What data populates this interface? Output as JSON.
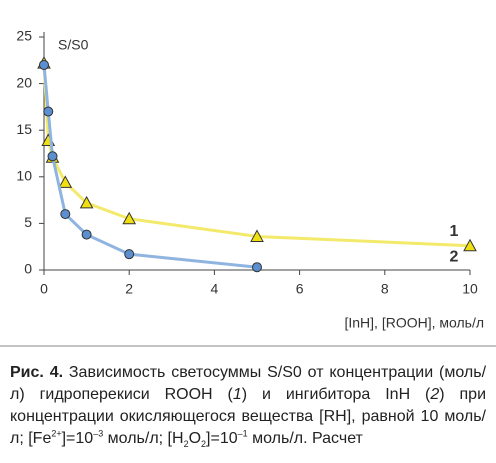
{
  "chart_data": {
    "type": "line",
    "ylabel": "S/S0",
    "xlabel": "[InH], [ROOH], моль/л",
    "xlim": [
      0,
      10
    ],
    "xticks": [
      0,
      2,
      4,
      6,
      8,
      10
    ],
    "ylim": [
      0,
      25
    ],
    "yticks": [
      0,
      5,
      10,
      15,
      20,
      25
    ],
    "grid": false,
    "series": [
      {
        "name": "1",
        "color": "#f3ea6b",
        "marker": "triangle",
        "marker_color": "#f0e012",
        "x": [
          0,
          0.1,
          0.2,
          0.5,
          1,
          2,
          5,
          10
        ],
        "values": [
          22.2,
          13.9,
          12.1,
          9.4,
          7.2,
          5.5,
          3.6,
          2.6
        ]
      },
      {
        "name": "2",
        "color": "#8fb4e0",
        "marker": "circle",
        "marker_color": "#5b8fd0",
        "x": [
          0,
          0.1,
          0.2,
          0.5,
          1,
          2,
          5
        ],
        "values": [
          22,
          17,
          12.2,
          6,
          3.8,
          1.7,
          0.3
        ]
      }
    ]
  },
  "caption": [
    "Рис. 4.",
    " Зависимость светосуммы S/S0 от концентрации (моль/л) гидроперекиси ROOH (",
    "1",
    ") и ингибитора InH (",
    "2",
    ") при концентрации окисляющегося вещества [RH], равной 10 моль/л; [Fe",
    "2+",
    "]=10",
    "–3",
    " моль/л; [H",
    "2",
    "O",
    "2",
    "]=10",
    "–1",
    " моль/л. Расчет"
  ]
}
